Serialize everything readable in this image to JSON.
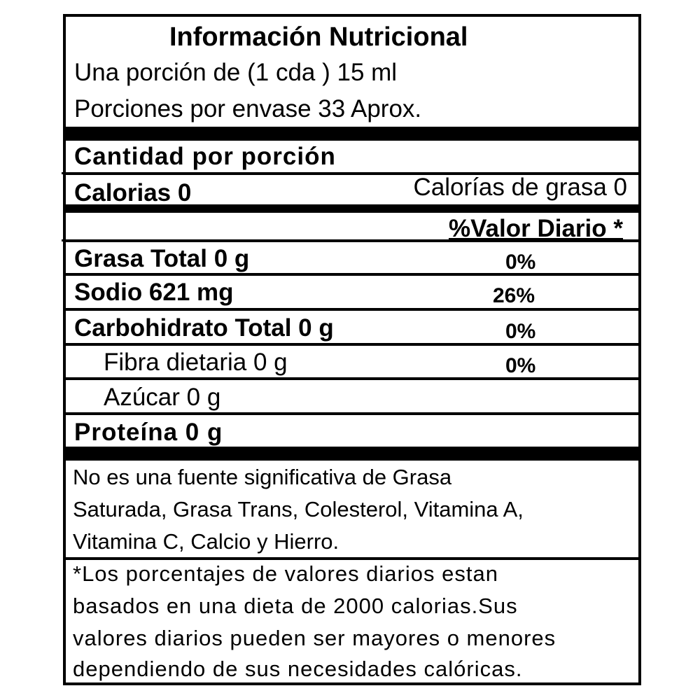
{
  "title": "Información Nutricional",
  "serving_size": "Una porción de (1 cda ) 15 ml",
  "servings_per_container": "Porciones por envase 33 Aprox.",
  "amount_per_serving": "Cantidad por porción",
  "calories": "Calorias  0",
  "calories_from_fat": "Calorías de grasa 0",
  "daily_value_header": "%Valor Diario *",
  "nutrients": [
    {
      "label": "Grasa Total 0 g",
      "dv": "0%"
    },
    {
      "label": "Sodio 621 mg",
      "dv": "26%"
    },
    {
      "label": "Carbohidrato Total 0 g",
      "dv": "0%"
    },
    {
      "label": "Fibra dietaria 0 g",
      "dv": "0%"
    },
    {
      "label": "Azúcar 0 g",
      "dv": ""
    },
    {
      "label": "Proteína 0 g",
      "dv": ""
    }
  ],
  "not_significant": [
    "No es una fuente significativa de Grasa",
    "Saturada, Grasa Trans, Colesterol, Vitamina A,",
    "Vitamina C, Calcio y Hierro."
  ],
  "footnote": [
    "*Los porcentajes de valores diarios estan",
    "basados en una dieta de 2000 calorias.Sus",
    "valores diarios pueden ser mayores o menores",
    "dependiendo de sus necesidades calóricas."
  ]
}
